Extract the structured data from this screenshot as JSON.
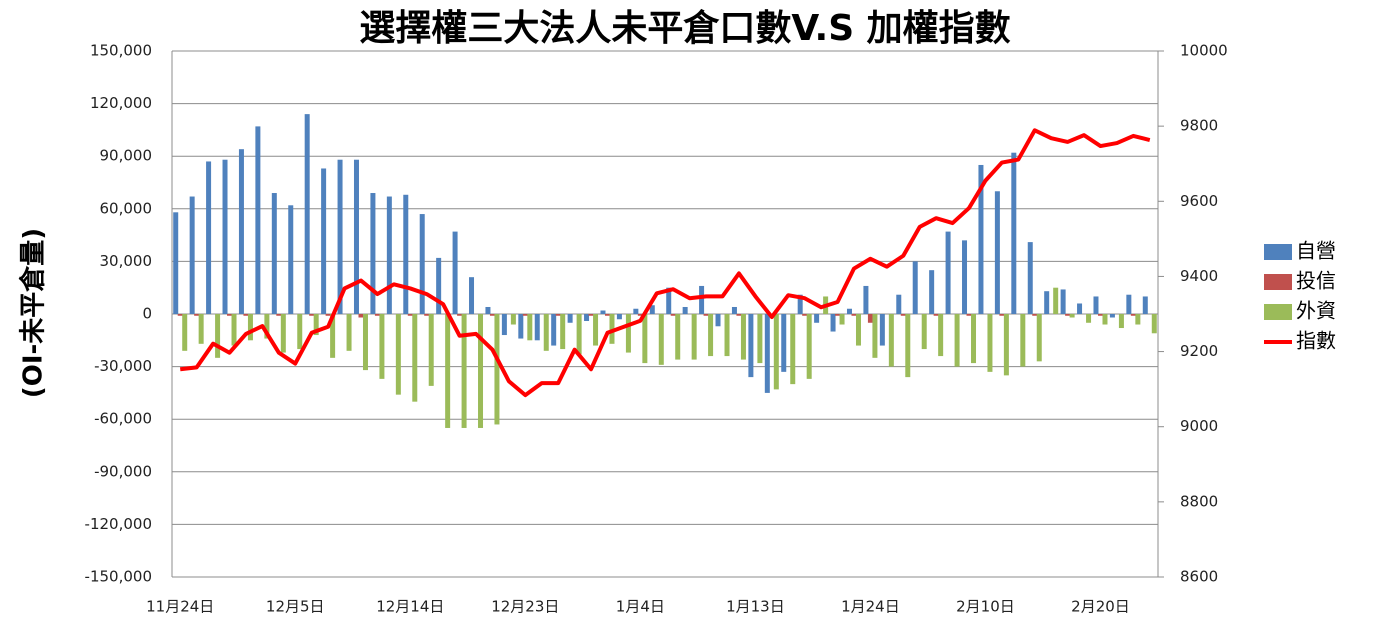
{
  "chart_data": {
    "type": "bar",
    "title": "選擇權三大法人未平倉口數V.S 加權指數",
    "y_label": "(OI-未平倉量)",
    "categories": [
      "11月24日",
      null,
      null,
      null,
      null,
      null,
      null,
      "12月5日",
      null,
      null,
      null,
      null,
      null,
      null,
      "12月14日",
      null,
      null,
      null,
      null,
      null,
      null,
      "12月23日",
      null,
      null,
      null,
      null,
      null,
      null,
      "1月4日",
      null,
      null,
      null,
      null,
      null,
      null,
      "1月13日",
      null,
      null,
      null,
      null,
      null,
      null,
      "1月24日",
      null,
      null,
      null,
      null,
      null,
      null,
      "2月10日",
      null,
      null,
      null,
      null,
      null,
      null,
      "2月20日",
      null,
      null,
      null
    ],
    "series": [
      {
        "name": "自營",
        "color": "#4f81bd",
        "values": [
          58000,
          67000,
          87000,
          88000,
          94000,
          107000,
          69000,
          62000,
          114000,
          83000,
          88000,
          88000,
          69000,
          67000,
          68000,
          57000,
          32000,
          47000,
          21000,
          4000,
          -12000,
          -14000,
          -15000,
          -18000,
          -5000,
          -4000,
          2000,
          -3000,
          3000,
          5000,
          15000,
          4000,
          16000,
          -7000,
          4000,
          -36000,
          -45000,
          -33000,
          11000,
          -5000,
          -10000,
          3000,
          16000,
          -18000,
          11000,
          30000,
          25000,
          47000,
          42000,
          85000,
          70000,
          92000,
          41000,
          13000,
          14000,
          6000,
          10000,
          -2000,
          11000,
          10000
        ]
      },
      {
        "name": "投信",
        "color": "#c0504d",
        "values": [
          -1000,
          -1000,
          0,
          -1000,
          -1000,
          0,
          -1000,
          0,
          -1000,
          -1000,
          0,
          -2000,
          -1000,
          0,
          -1000,
          -1000,
          0,
          -1000,
          0,
          -1000,
          0,
          -1000,
          0,
          -1000,
          0,
          -1000,
          -1000,
          0,
          -1000,
          0,
          -1000,
          0,
          -1000,
          0,
          -1000,
          0,
          -1000,
          0,
          -1000,
          0,
          -1000,
          -1000,
          -5000,
          0,
          -1000,
          0,
          -1000,
          0,
          -1000,
          0,
          -1000,
          0,
          -1000,
          0,
          -1000,
          0,
          -1000,
          0,
          -1000,
          0
        ]
      },
      {
        "name": "外資",
        "color": "#9bbb59",
        "values": [
          -21000,
          -17000,
          -25000,
          -18000,
          -15000,
          -14000,
          -22000,
          -20000,
          -12000,
          -25000,
          -21000,
          -32000,
          -37000,
          -46000,
          -50000,
          -41000,
          -65000,
          -65000,
          -65000,
          -63000,
          -6000,
          -15000,
          -21000,
          -20000,
          -23000,
          -18000,
          -17000,
          -22000,
          -28000,
          -29000,
          -26000,
          -26000,
          -24000,
          -24000,
          -26000,
          -28000,
          -43000,
          -40000,
          -37000,
          10000,
          -6000,
          -18000,
          -25000,
          -30000,
          -36000,
          -20000,
          -24000,
          -30000,
          -28000,
          -33000,
          -35000,
          -30000,
          -27000,
          15000,
          -2000,
          -5000,
          -6000,
          -8000,
          -6000,
          -11000
        ]
      },
      {
        "name": "指數",
        "color": "#ff0000",
        "type": "line",
        "axis": "y2",
        "values": [
          9153,
          9158,
          9221,
          9197,
          9247,
          9268,
          9197,
          9168,
          9250,
          9266,
          9368,
          9389,
          9353,
          9379,
          9368,
          9353,
          9326,
          9242,
          9247,
          9205,
          9121,
          9084,
          9116,
          9116,
          9205,
          9153,
          9250,
          9266,
          9282,
          9355,
          9366,
          9342,
          9347,
          9347,
          9408,
          9347,
          9292,
          9350,
          9342,
          9318,
          9332,
          9421,
          9447,
          9426,
          9455,
          9532,
          9555,
          9542,
          9582,
          9655,
          9703,
          9711,
          9789,
          9768,
          9758,
          9776,
          9747,
          9755,
          9774,
          9763
        ]
      }
    ],
    "ylim": [
      -150000,
      150000
    ],
    "yticks": [
      {
        "value": -150000,
        "label": "-150,000"
      },
      {
        "value": -120000,
        "label": "-120,000"
      },
      {
        "value": -90000,
        "label": "-90,000"
      },
      {
        "value": -60000,
        "label": "-60,000"
      },
      {
        "value": -30000,
        "label": "-30,000"
      },
      0,
      {
        "value": 30000,
        "label": "30,000"
      },
      {
        "value": 60000,
        "label": "60,000"
      },
      {
        "value": 90000,
        "label": "90,000"
      },
      {
        "value": 120000,
        "label": "120,000"
      },
      {
        "value": 150000,
        "label": "150,000"
      }
    ],
    "y2lim": [
      8600,
      10000
    ],
    "y2ticks": [
      8600,
      8800,
      9000,
      9200,
      9400,
      9600,
      9800,
      10000
    ],
    "grid": true,
    "legend": "right"
  }
}
